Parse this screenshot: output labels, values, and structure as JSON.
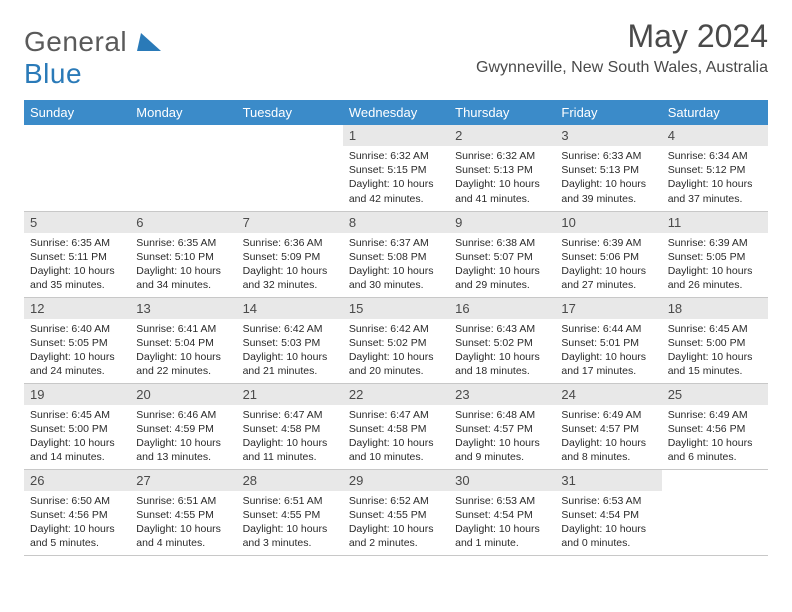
{
  "brand": {
    "part1": "General",
    "part2": "Blue"
  },
  "title": "May 2024",
  "location": "Gwynneville, New South Wales, Australia",
  "colors": {
    "header_bg": "#3b8bc9",
    "header_fg": "#ffffff",
    "daynum_bg": "#e8e8e8",
    "row_border": "#c8c8c8",
    "text": "#2a2a2a",
    "title_text": "#4a4a4a",
    "logo_blue": "#2a7ab8"
  },
  "typography": {
    "title_fontsize": 32,
    "location_fontsize": 16,
    "dayhead_fontsize": 13,
    "daynum_fontsize": 13,
    "body_fontsize": 10.5
  },
  "weekdays": [
    "Sunday",
    "Monday",
    "Tuesday",
    "Wednesday",
    "Thursday",
    "Friday",
    "Saturday"
  ],
  "weeks": [
    [
      null,
      null,
      null,
      {
        "n": "1",
        "sr": "Sunrise: 6:32 AM",
        "ss": "Sunset: 5:15 PM",
        "d1": "Daylight: 10 hours",
        "d2": "and 42 minutes."
      },
      {
        "n": "2",
        "sr": "Sunrise: 6:32 AM",
        "ss": "Sunset: 5:13 PM",
        "d1": "Daylight: 10 hours",
        "d2": "and 41 minutes."
      },
      {
        "n": "3",
        "sr": "Sunrise: 6:33 AM",
        "ss": "Sunset: 5:13 PM",
        "d1": "Daylight: 10 hours",
        "d2": "and 39 minutes."
      },
      {
        "n": "4",
        "sr": "Sunrise: 6:34 AM",
        "ss": "Sunset: 5:12 PM",
        "d1": "Daylight: 10 hours",
        "d2": "and 37 minutes."
      }
    ],
    [
      {
        "n": "5",
        "sr": "Sunrise: 6:35 AM",
        "ss": "Sunset: 5:11 PM",
        "d1": "Daylight: 10 hours",
        "d2": "and 35 minutes."
      },
      {
        "n": "6",
        "sr": "Sunrise: 6:35 AM",
        "ss": "Sunset: 5:10 PM",
        "d1": "Daylight: 10 hours",
        "d2": "and 34 minutes."
      },
      {
        "n": "7",
        "sr": "Sunrise: 6:36 AM",
        "ss": "Sunset: 5:09 PM",
        "d1": "Daylight: 10 hours",
        "d2": "and 32 minutes."
      },
      {
        "n": "8",
        "sr": "Sunrise: 6:37 AM",
        "ss": "Sunset: 5:08 PM",
        "d1": "Daylight: 10 hours",
        "d2": "and 30 minutes."
      },
      {
        "n": "9",
        "sr": "Sunrise: 6:38 AM",
        "ss": "Sunset: 5:07 PM",
        "d1": "Daylight: 10 hours",
        "d2": "and 29 minutes."
      },
      {
        "n": "10",
        "sr": "Sunrise: 6:39 AM",
        "ss": "Sunset: 5:06 PM",
        "d1": "Daylight: 10 hours",
        "d2": "and 27 minutes."
      },
      {
        "n": "11",
        "sr": "Sunrise: 6:39 AM",
        "ss": "Sunset: 5:05 PM",
        "d1": "Daylight: 10 hours",
        "d2": "and 26 minutes."
      }
    ],
    [
      {
        "n": "12",
        "sr": "Sunrise: 6:40 AM",
        "ss": "Sunset: 5:05 PM",
        "d1": "Daylight: 10 hours",
        "d2": "and 24 minutes."
      },
      {
        "n": "13",
        "sr": "Sunrise: 6:41 AM",
        "ss": "Sunset: 5:04 PM",
        "d1": "Daylight: 10 hours",
        "d2": "and 22 minutes."
      },
      {
        "n": "14",
        "sr": "Sunrise: 6:42 AM",
        "ss": "Sunset: 5:03 PM",
        "d1": "Daylight: 10 hours",
        "d2": "and 21 minutes."
      },
      {
        "n": "15",
        "sr": "Sunrise: 6:42 AM",
        "ss": "Sunset: 5:02 PM",
        "d1": "Daylight: 10 hours",
        "d2": "and 20 minutes."
      },
      {
        "n": "16",
        "sr": "Sunrise: 6:43 AM",
        "ss": "Sunset: 5:02 PM",
        "d1": "Daylight: 10 hours",
        "d2": "and 18 minutes."
      },
      {
        "n": "17",
        "sr": "Sunrise: 6:44 AM",
        "ss": "Sunset: 5:01 PM",
        "d1": "Daylight: 10 hours",
        "d2": "and 17 minutes."
      },
      {
        "n": "18",
        "sr": "Sunrise: 6:45 AM",
        "ss": "Sunset: 5:00 PM",
        "d1": "Daylight: 10 hours",
        "d2": "and 15 minutes."
      }
    ],
    [
      {
        "n": "19",
        "sr": "Sunrise: 6:45 AM",
        "ss": "Sunset: 5:00 PM",
        "d1": "Daylight: 10 hours",
        "d2": "and 14 minutes."
      },
      {
        "n": "20",
        "sr": "Sunrise: 6:46 AM",
        "ss": "Sunset: 4:59 PM",
        "d1": "Daylight: 10 hours",
        "d2": "and 13 minutes."
      },
      {
        "n": "21",
        "sr": "Sunrise: 6:47 AM",
        "ss": "Sunset: 4:58 PM",
        "d1": "Daylight: 10 hours",
        "d2": "and 11 minutes."
      },
      {
        "n": "22",
        "sr": "Sunrise: 6:47 AM",
        "ss": "Sunset: 4:58 PM",
        "d1": "Daylight: 10 hours",
        "d2": "and 10 minutes."
      },
      {
        "n": "23",
        "sr": "Sunrise: 6:48 AM",
        "ss": "Sunset: 4:57 PM",
        "d1": "Daylight: 10 hours",
        "d2": "and 9 minutes."
      },
      {
        "n": "24",
        "sr": "Sunrise: 6:49 AM",
        "ss": "Sunset: 4:57 PM",
        "d1": "Daylight: 10 hours",
        "d2": "and 8 minutes."
      },
      {
        "n": "25",
        "sr": "Sunrise: 6:49 AM",
        "ss": "Sunset: 4:56 PM",
        "d1": "Daylight: 10 hours",
        "d2": "and 6 minutes."
      }
    ],
    [
      {
        "n": "26",
        "sr": "Sunrise: 6:50 AM",
        "ss": "Sunset: 4:56 PM",
        "d1": "Daylight: 10 hours",
        "d2": "and 5 minutes."
      },
      {
        "n": "27",
        "sr": "Sunrise: 6:51 AM",
        "ss": "Sunset: 4:55 PM",
        "d1": "Daylight: 10 hours",
        "d2": "and 4 minutes."
      },
      {
        "n": "28",
        "sr": "Sunrise: 6:51 AM",
        "ss": "Sunset: 4:55 PM",
        "d1": "Daylight: 10 hours",
        "d2": "and 3 minutes."
      },
      {
        "n": "29",
        "sr": "Sunrise: 6:52 AM",
        "ss": "Sunset: 4:55 PM",
        "d1": "Daylight: 10 hours",
        "d2": "and 2 minutes."
      },
      {
        "n": "30",
        "sr": "Sunrise: 6:53 AM",
        "ss": "Sunset: 4:54 PM",
        "d1": "Daylight: 10 hours",
        "d2": "and 1 minute."
      },
      {
        "n": "31",
        "sr": "Sunrise: 6:53 AM",
        "ss": "Sunset: 4:54 PM",
        "d1": "Daylight: 10 hours",
        "d2": "and 0 minutes."
      },
      null
    ]
  ]
}
